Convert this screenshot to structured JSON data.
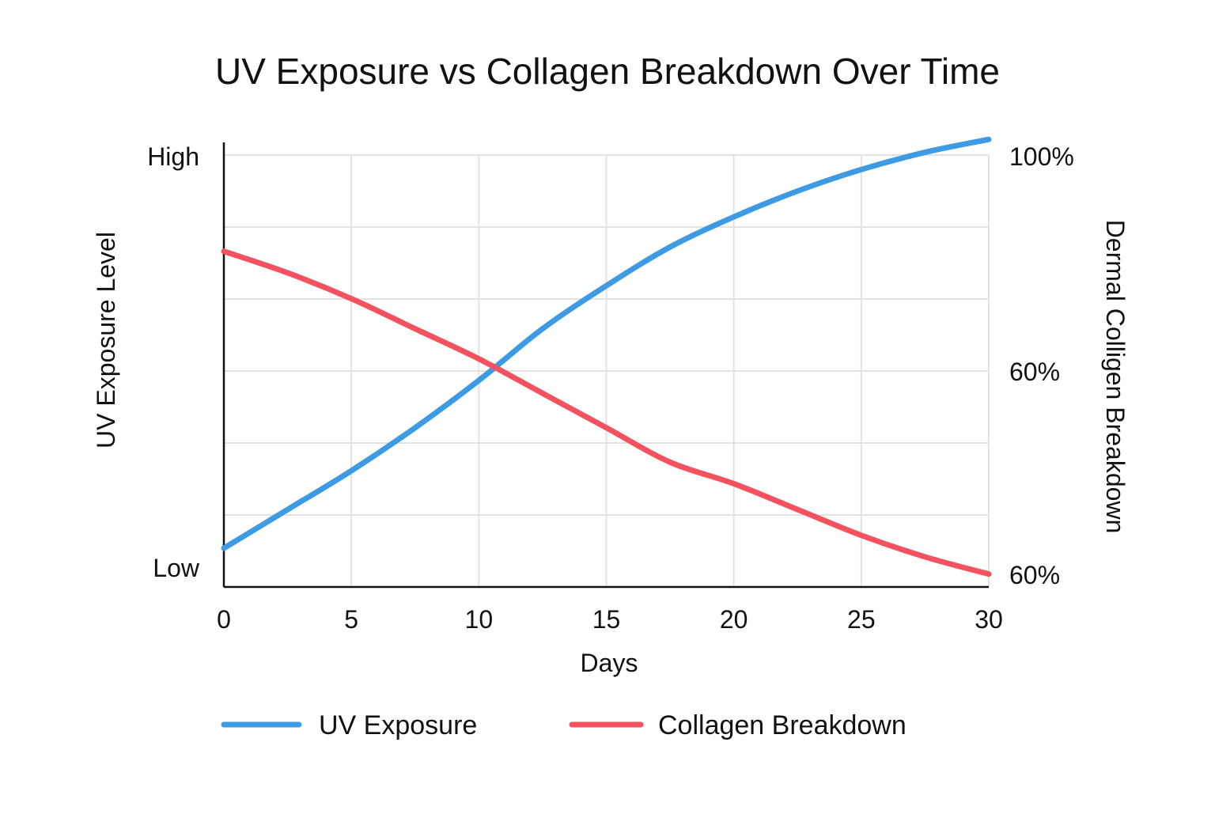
{
  "chart_data": {
    "type": "line",
    "title": "UV Exposure vs Collagen Breakdown Over Time",
    "xlabel": "Days",
    "ylabel_left": "UV Exposure Level",
    "ylabel_right": "Dermal Colligen Breakdown",
    "xlim": [
      0,
      30
    ],
    "x_ticks": [
      "0",
      "5",
      "10",
      "15",
      "20",
      "25",
      "30"
    ],
    "left_ticks": [
      "Low",
      "High"
    ],
    "right_ticks": [
      "60%",
      "60%",
      "100%"
    ],
    "grid": true,
    "legend_position": "bottom",
    "series": [
      {
        "name": "UV Exposure",
        "color": "#3d9be3",
        "x": [
          0,
          2.5,
          5,
          7.5,
          10,
          12.5,
          15,
          17.5,
          20,
          22.5,
          25,
          27.5,
          30
        ],
        "y": [
          0.09,
          0.18,
          0.27,
          0.37,
          0.48,
          0.6,
          0.7,
          0.79,
          0.86,
          0.92,
          0.97,
          1.01,
          1.04
        ]
      },
      {
        "name": "Collagen Breakdown",
        "color": "#f4525e",
        "x": [
          0,
          2.5,
          5,
          7.5,
          10,
          12.5,
          15,
          17.5,
          20,
          22.5,
          25,
          27.5,
          30
        ],
        "y": [
          0.78,
          0.73,
          0.67,
          0.6,
          0.53,
          0.45,
          0.37,
          0.29,
          0.24,
          0.18,
          0.12,
          0.07,
          0.03
        ]
      }
    ]
  }
}
